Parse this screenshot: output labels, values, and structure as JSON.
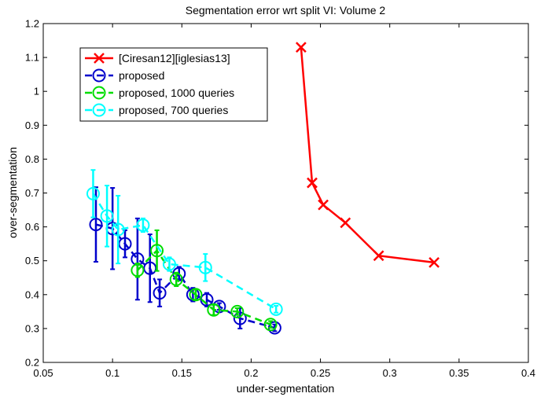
{
  "chart_data": {
    "type": "scatter",
    "title": "Segmentation error wrt split VI: Volume 2",
    "xlabel": "under-segmentation",
    "ylabel": "over-segmentation",
    "xlim": [
      0.05,
      0.4
    ],
    "ylim": [
      0.2,
      1.2
    ],
    "xticks": [
      "0.05",
      "0.1",
      "0.15",
      "0.2",
      "0.25",
      "0.3",
      "0.35",
      "0.4"
    ],
    "yticks": [
      "0.2",
      "0.3",
      "0.4",
      "0.5",
      "0.6",
      "0.7",
      "0.8",
      "0.9",
      "1",
      "1.1",
      "1.2"
    ],
    "grid": false,
    "legend_position": "top-left",
    "series": [
      {
        "name": "[Ciresan12][iglesias13]",
        "color": "#ff0000",
        "marker": "x",
        "line": "solid",
        "x": [
          0.236,
          0.244,
          0.252,
          0.268,
          0.292,
          0.332
        ],
        "y": [
          1.13,
          0.73,
          0.665,
          0.612,
          0.515,
          0.495
        ]
      },
      {
        "name": "proposed",
        "color": "#0000cc",
        "marker": "circle",
        "line": "dashed",
        "x": [
          0.088,
          0.1,
          0.109,
          0.118,
          0.127,
          0.134,
          0.148,
          0.158,
          0.168,
          0.177,
          0.192,
          0.217
        ],
        "y": [
          0.607,
          0.595,
          0.55,
          0.505,
          0.478,
          0.405,
          0.462,
          0.4,
          0.385,
          0.365,
          0.33,
          0.302
        ],
        "err": [
          0.11,
          0.12,
          0.04,
          0.12,
          0.1,
          0.04,
          0.02,
          0.02,
          0.02,
          0.01,
          0.03,
          0.01
        ]
      },
      {
        "name": "proposed, 1000 queries",
        "color": "#00dd00",
        "marker": "circle",
        "line": "dashed",
        "x": [
          0.118,
          0.132,
          0.146,
          0.16,
          0.173,
          0.19,
          0.214
        ],
        "y": [
          0.472,
          0.53,
          0.445,
          0.4,
          0.355,
          0.35,
          0.312
        ],
        "err": [
          0.02,
          0.06,
          0.02,
          0.015,
          0.015,
          0.01,
          0.01
        ]
      },
      {
        "name": "proposed, 700 queries",
        "color": "#00ffff",
        "marker": "circle",
        "line": "dashed",
        "x": [
          0.086,
          0.096,
          0.104,
          0.122,
          0.141,
          0.167,
          0.218
        ],
        "y": [
          0.698,
          0.632,
          0.592,
          0.605,
          0.49,
          0.48,
          0.357
        ],
        "err": [
          0.07,
          0.09,
          0.1,
          0.02,
          0.02,
          0.04,
          0.01
        ]
      }
    ]
  }
}
